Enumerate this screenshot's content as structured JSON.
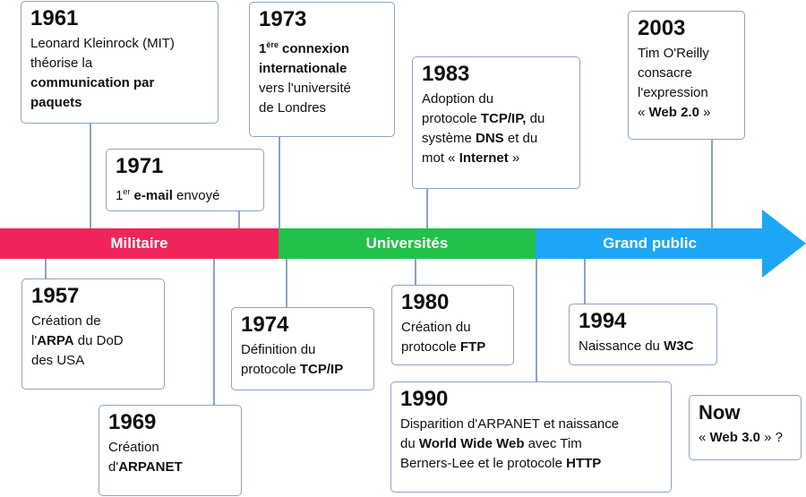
{
  "bands": {
    "military": {
      "label": "Militaire",
      "color": "#f0245a"
    },
    "universities": {
      "label": "Universités",
      "color": "#22c14a"
    },
    "public": {
      "label": "Grand public",
      "color": "#1da6f5"
    }
  },
  "events": {
    "e1957": {
      "year": "1957",
      "l1": "Création de",
      "l2a": "l'",
      "l2b": "ARPA",
      "l2c": " du DoD",
      "l3": "des USA"
    },
    "e1961": {
      "year": "1961",
      "l1": "Leonard Kleinrock (MIT)",
      "l2": "théorise la",
      "l3": "communication par",
      "l4": "paquets"
    },
    "e1969": {
      "year": "1969",
      "l1": "Création",
      "l2a": "d'",
      "l2b": "ARPANET"
    },
    "e1971": {
      "year": "1971",
      "sup": "er",
      "num": "1",
      "bold": "e-mail",
      "rest": " envoyé"
    },
    "e1973": {
      "year": "1973",
      "num": "1",
      "sup": "ère",
      "b1": " connexion",
      "b2": "internationale",
      "l3": "vers l'université",
      "l4": "de Londres"
    },
    "e1974": {
      "year": "1974",
      "l1": "Définition du",
      "l2a": "protocole ",
      "l2b": "TCP/IP"
    },
    "e1980": {
      "year": "1980",
      "l1": "Création du",
      "l2a": "protocole ",
      "l2b": "FTP"
    },
    "e1983": {
      "year": "1983",
      "l1": "Adoption du",
      "l2a": "protocole ",
      "l2b": "TCP/IP,",
      "l2c": " du",
      "l3a": "système ",
      "l3b": "DNS",
      "l3c": " et du",
      "l4a": "mot « ",
      "l4b": "Internet",
      "l4c": " »"
    },
    "e1990": {
      "year": "1990",
      "l1": "Disparition d'ARPANET et naissance",
      "l2a": "du ",
      "l2b": "World Wide Web",
      "l2c": " avec Tim",
      "l3a": "Berners-Lee et le protocole ",
      "l3b": "HTTP"
    },
    "e1994": {
      "year": "1994",
      "l1a": "Naissance du ",
      "l1b": "W3C"
    },
    "e2003": {
      "year": "2003",
      "l1": "Tim O'Reilly",
      "l2": "consacre",
      "l3": "l'expression",
      "l4a": "« ",
      "l4b": "Web 2.0",
      "l4c": " »"
    },
    "now": {
      "year": "Now",
      "l1a": "« ",
      "l1b": "Web 3.0",
      "l1c": " » ?"
    }
  }
}
